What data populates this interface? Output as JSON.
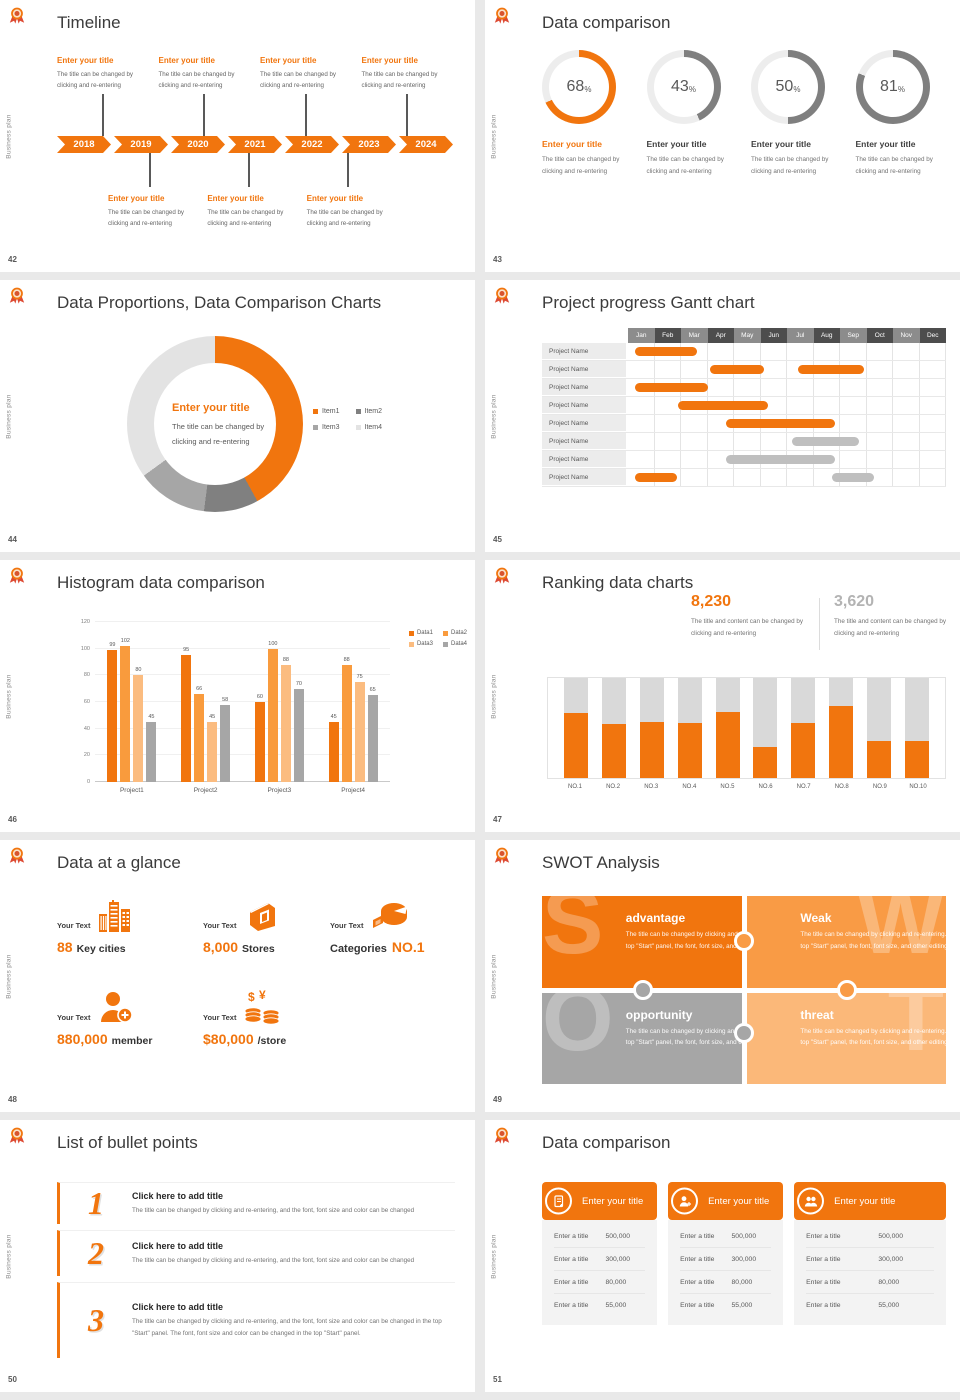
{
  "page": {
    "background": "#E9E9E9",
    "slide_background": "#FFFFFF"
  },
  "branding": {
    "logo_icon": "award-ribbon-badge-icon",
    "vertical_label": "Business plan"
  },
  "colors": {
    "orange": "#F1750E",
    "orange_mid": "#F99B3D",
    "orange_light": "#FBBC80",
    "gray_dark": "#7F7F7F",
    "gray_mid": "#A6A6A6",
    "gray_light": "#D9D9D9",
    "ring_track": "#EDEDED"
  },
  "slides": {
    "timeline": {
      "page_no": "42",
      "title": "Timeline",
      "years": [
        "2018",
        "2019",
        "2020",
        "2021",
        "2022",
        "2023",
        "2024"
      ],
      "item_title": "Enter your title",
      "item_body": "The title can be changed by clicking and re-entering",
      "top_count": 4,
      "bottom_count": 3
    },
    "rings": {
      "page_no": "43",
      "title": "Data comparison",
      "items": [
        {
          "pct": 68,
          "title": "Enter your title",
          "body": "The title can be changed by clicking and re-entering",
          "highlight": true,
          "arc_color": "#F1750E"
        },
        {
          "pct": 43,
          "title": "Enter your title",
          "body": "The title can be changed by clicking and re-entering",
          "highlight": false,
          "arc_color": "#7F7F7F"
        },
        {
          "pct": 50,
          "title": "Enter your title",
          "body": "The title can be changed by clicking and re-entering",
          "highlight": false,
          "arc_color": "#7F7F7F"
        },
        {
          "pct": 81,
          "title": "Enter your title",
          "body": "The title can be changed by clicking and re-entering",
          "highlight": false,
          "arc_color": "#7F7F7F"
        }
      ]
    },
    "donut": {
      "page_no": "44",
      "title": "Data Proportions, Data Comparison Charts",
      "center_title": "Enter your title",
      "center_body": "The title can be changed by clicking and re-entering",
      "chart_data": {
        "type": "pie",
        "segments": [
          {
            "label": "Item1",
            "value": 42,
            "color": "#F1750E"
          },
          {
            "label": "Item2",
            "value": 10,
            "color": "#808080"
          },
          {
            "label": "Item3",
            "value": 13,
            "color": "#A6A6A6"
          },
          {
            "label": "Item4",
            "value": 35,
            "color": "#E3E3E3"
          }
        ]
      }
    },
    "gantt": {
      "page_no": "45",
      "title": "Project progress Gantt chart",
      "months": [
        "Jan",
        "Feb",
        "Mar",
        "Apr",
        "May",
        "Jun",
        "Jul",
        "Aug",
        "Sep",
        "Oct",
        "Nov",
        "Dec"
      ],
      "header_colors": [
        "#8C8C8C",
        "#4D4D4D"
      ],
      "row_label": "Project Name",
      "bar_colors": {
        "orange": "#F1750E",
        "gray": "#BFBFBF"
      },
      "rows": [
        {
          "bars": [
            {
              "start": 0.25,
              "end": 2.6,
              "color": "orange"
            }
          ]
        },
        {
          "bars": [
            {
              "start": 3.1,
              "end": 5.15,
              "color": "orange"
            },
            {
              "start": 6.4,
              "end": 8.9,
              "color": "orange"
            }
          ]
        },
        {
          "bars": [
            {
              "start": 0.25,
              "end": 3.0,
              "color": "orange"
            }
          ]
        },
        {
          "bars": [
            {
              "start": 1.9,
              "end": 5.3,
              "color": "orange"
            }
          ]
        },
        {
          "bars": [
            {
              "start": 3.7,
              "end": 7.8,
              "color": "orange"
            }
          ]
        },
        {
          "bars": [
            {
              "start": 6.2,
              "end": 8.7,
              "color": "gray"
            }
          ]
        },
        {
          "bars": [
            {
              "start": 3.7,
              "end": 7.8,
              "color": "gray"
            }
          ]
        },
        {
          "bars": [
            {
              "start": 0.25,
              "end": 1.85,
              "color": "orange"
            },
            {
              "start": 7.7,
              "end": 9.3,
              "color": "gray"
            }
          ]
        }
      ]
    },
    "histogram": {
      "page_no": "46",
      "title": "Histogram data comparison",
      "chart_data": {
        "type": "bar",
        "categories": [
          "Project1",
          "Project2",
          "Project3",
          "Project4"
        ],
        "series": [
          {
            "name": "Data1",
            "color": "#F1750E",
            "values": [
              99,
              95,
              60,
              45
            ]
          },
          {
            "name": "Data2",
            "color": "#F99B3D",
            "values": [
              102,
              66,
              100,
              88
            ]
          },
          {
            "name": "Data3",
            "color": "#FBBC80",
            "values": [
              80,
              45,
              88,
              75
            ]
          },
          {
            "name": "Data4",
            "color": "#A6A6A6",
            "values": [
              45,
              58,
              70,
              65
            ]
          }
        ],
        "ylim": [
          0,
          120
        ],
        "ytick": 20,
        "grid": true,
        "legend_position": "top-right"
      }
    },
    "ranking": {
      "page_no": "47",
      "title": "Ranking data charts",
      "stat_left": {
        "value": "8,230",
        "desc": "The title and content can be changed by clicking and re-entering",
        "color": "#F1750E"
      },
      "stat_right": {
        "value": "3,620",
        "desc": "The title and content can be changed by clicking and re-entering",
        "color": "#B3B3B3"
      },
      "chart_data": {
        "type": "bar",
        "categories": [
          "NO.1",
          "NO.2",
          "NO.3",
          "NO.4",
          "NO.5",
          "NO.6",
          "NO.7",
          "NO.8",
          "NO.9",
          "NO.10"
        ],
        "values_pct": [
          65,
          54,
          56,
          55,
          66,
          31,
          55,
          72,
          37,
          37
        ],
        "bar_color": "#F1750E",
        "track_color": "#D9D9D9"
      }
    },
    "glance": {
      "page_no": "48",
      "title": "Data at a glance",
      "items": [
        {
          "icon": "city-buildings-icon",
          "label": "Your Text",
          "value": "88",
          "unit": "Key cities"
        },
        {
          "icon": "store-icon",
          "label": "Your Text",
          "value": "8,000",
          "unit": "Stores"
        },
        {
          "icon": "category-pie-icon",
          "label": "Your Text",
          "value": "NO.1",
          "unit": "Categories"
        },
        {
          "icon": "member-add-icon",
          "label": "Your Text",
          "value": "880,000",
          "unit": "member"
        },
        {
          "icon": "coins-icon",
          "label": "Your Text",
          "value": "$80,000",
          "unit": "/store"
        }
      ]
    },
    "swot": {
      "page_no": "49",
      "title": "SWOT Analysis",
      "quadrants": [
        {
          "letter": "S",
          "title": "advantage",
          "body": "The title can be changed by clicking and re-entering. In the top \"Start\" panel, the font, font size, and other editing",
          "color": "#F1750E"
        },
        {
          "letter": "W",
          "title": "Weak",
          "body": "The title can be changed by clicking and re-entering. In the top \"Start\" panel, the font, font size, and other editing",
          "color": "#F99B45"
        },
        {
          "letter": "O",
          "title": "opportunity",
          "body": "The title can be changed by clicking and re-entering. In the top \"Start\" panel, the font, font size, and other editing",
          "color": "#A6A6A6"
        },
        {
          "letter": "T",
          "title": "threat",
          "body": "The title can be changed by clicking and re-entering. In the top \"Start\" panel, the font, font size, and other editing",
          "color": "#FBB879"
        }
      ]
    },
    "bullets": {
      "page_no": "50",
      "title": "List of bullet points",
      "items": [
        {
          "num": "1",
          "title": "Click here to add title",
          "body": "The title can be changed by clicking and re-entering, and the font, font size and color can be changed"
        },
        {
          "num": "2",
          "title": "Click here to add title",
          "body": "The title can be changed by clicking and re-entering, and the font, font size and color can be changed"
        },
        {
          "num": "3",
          "title": "Click here to add title",
          "body": "The title can be changed by clicking and re-entering, and the font, font size and color can be changed in the top \"Start\" panel. The font, font size and color can be changed in the top \"Start\" panel."
        }
      ]
    },
    "tables": {
      "page_no": "51",
      "title": "Data comparison",
      "cards": [
        {
          "icon": "document-add-icon",
          "title": "Enter your title",
          "rows": [
            {
              "label": "Enter a title",
              "value": "500,000"
            },
            {
              "label": "Enter a title",
              "value": "300,000"
            },
            {
              "label": "Enter a title",
              "value": "80,000"
            },
            {
              "label": "Enter a title",
              "value": "55,000"
            }
          ]
        },
        {
          "icon": "person-add-icon",
          "title": "Enter your title",
          "rows": [
            {
              "label": "Enter a title",
              "value": "500,000"
            },
            {
              "label": "Enter a title",
              "value": "300,000"
            },
            {
              "label": "Enter a title",
              "value": "80,000"
            },
            {
              "label": "Enter a title",
              "value": "55,000"
            }
          ]
        },
        {
          "icon": "people-icon",
          "title": "Enter your title",
          "rows": [
            {
              "label": "Enter a title",
              "value": "500,000"
            },
            {
              "label": "Enter a title",
              "value": "300,000"
            },
            {
              "label": "Enter a title",
              "value": "80,000"
            },
            {
              "label": "Enter a title",
              "value": "55,000"
            }
          ]
        }
      ]
    }
  }
}
